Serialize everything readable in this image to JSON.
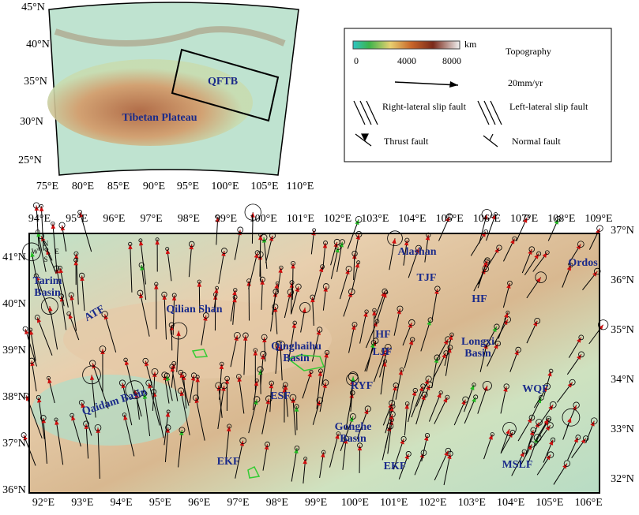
{
  "inset": {
    "lat_labels": [
      "45°N",
      "40°N",
      "35°N",
      "30°N",
      "25°N"
    ],
    "lon_labels": [
      "75°E",
      "80°E",
      "85°E",
      "90°E",
      "95°E",
      "100°E",
      "105°E",
      "110°E"
    ],
    "box_label": "QFTB",
    "region_label": "Tibetan Plateau"
  },
  "legend": {
    "colorbar_ticks": [
      "0",
      "4000",
      "8000"
    ],
    "unit": "km",
    "title": "Topography",
    "vector_scale": "20mm/yr",
    "items": [
      "Right-lateral slip fault",
      "Left-lateral slip fault",
      "Thrust fault",
      "Normal fault"
    ]
  },
  "main_map": {
    "top_lon_labels": [
      "94°E",
      "95°E",
      "96°E",
      "97°E",
      "98°E",
      "99°E",
      "100°E",
      "101°E",
      "102°E",
      "103°E",
      "104°E",
      "105°E",
      "106°E",
      "107°E",
      "108°E",
      "109°E"
    ],
    "bottom_lon_labels": [
      "92°E",
      "93°E",
      "94°E",
      "95°E",
      "96°E",
      "97°E",
      "98°E",
      "99°E",
      "100°E",
      "101°E",
      "102°E",
      "103°E",
      "104°E",
      "105°E",
      "106°E"
    ],
    "left_lat_labels": [
      "41°N",
      "40°N",
      "39°N",
      "38°N",
      "37°N",
      "36°N"
    ],
    "right_lat_labels": [
      "37°N",
      "36°N",
      "35°N",
      "34°N",
      "33°N",
      "32°N"
    ],
    "compass": [
      "N",
      "W",
      "E",
      "S"
    ],
    "labels": [
      "Tarim Basin",
      "ATF",
      "Qilian Shan",
      "Alashan",
      "Ordos",
      "TJF",
      "HF",
      "HF",
      "Longxi Basin",
      "Qinghaihu Basin",
      "LJF",
      "RYF",
      "ESF",
      "Qaidam Basin",
      "WQF",
      "Gonghe Basin",
      "EKF",
      "EKF",
      "MSLF"
    ]
  }
}
